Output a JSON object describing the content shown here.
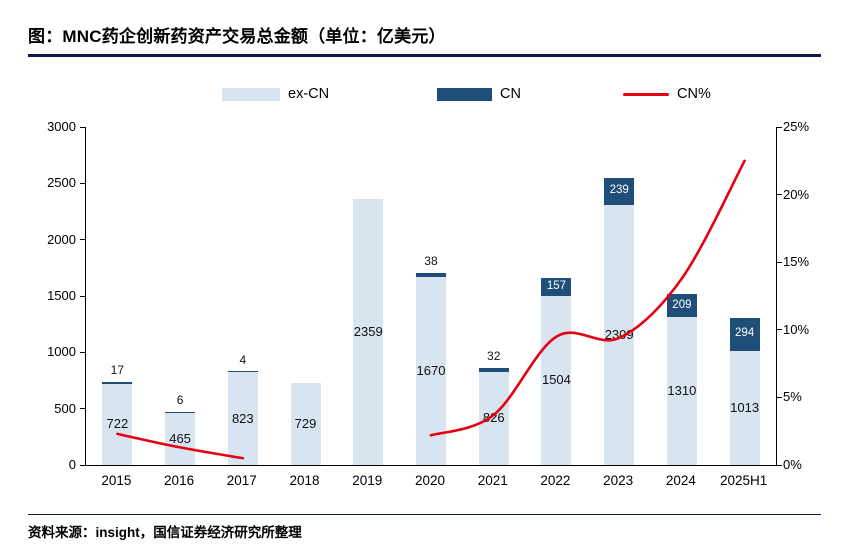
{
  "figure": {
    "title": "图：MNC药企创新药资产交易总金额（单位：亿美元）",
    "source": "资料来源：insight，国信证券经济研究所整理"
  },
  "colors": {
    "ex_cn_bar": "#d9e4f1",
    "cn_bar": "#1f4e79",
    "cn_percent_line": "#e60012",
    "rule_navy": "#0d1b4b"
  },
  "legend": {
    "items": [
      {
        "label": "ex-CN",
        "swatch": "light-blue-bar"
      },
      {
        "label": "CN",
        "swatch": "dark-navy-bar"
      },
      {
        "label": "CN%",
        "swatch": "red-line"
      }
    ]
  },
  "chart_data": {
    "type": "bar",
    "subtype": "stacked-bar-with-line",
    "title": "MNC药企创新药资产交易总金额（单位：亿美元）",
    "categories": [
      "2015",
      "2016",
      "2017",
      "2018",
      "2019",
      "2020",
      "2021",
      "2022",
      "2023",
      "2024",
      "2025H1"
    ],
    "series": [
      {
        "name": "ex-CN",
        "type": "bar",
        "axis": "left",
        "values": [
          722,
          465,
          823,
          729,
          2359,
          1670,
          826,
          1504,
          2309,
          1310,
          1013
        ]
      },
      {
        "name": "CN",
        "type": "bar",
        "axis": "left",
        "stacked_on": "ex-CN",
        "values": [
          17,
          6,
          4,
          0,
          0,
          38,
          32,
          157,
          239,
          209,
          294
        ]
      },
      {
        "name": "CN%",
        "type": "line",
        "axis": "right",
        "values": [
          2.3,
          1.3,
          0.5,
          null,
          null,
          2.2,
          3.7,
          9.5,
          9.4,
          13.8,
          22.5
        ]
      }
    ],
    "left_axis": {
      "min": 0,
      "max": 3000,
      "step": 500,
      "ticks": [
        0,
        500,
        1000,
        1500,
        2000,
        2500,
        3000
      ]
    },
    "right_axis": {
      "min": 0,
      "max": 25,
      "step": 5,
      "ticks": [
        "0%",
        "5%",
        "10%",
        "15%",
        "20%",
        "25%"
      ],
      "tick_values": [
        0,
        5,
        10,
        15,
        20,
        25
      ]
    },
    "grid": false,
    "legend_position": "top"
  }
}
